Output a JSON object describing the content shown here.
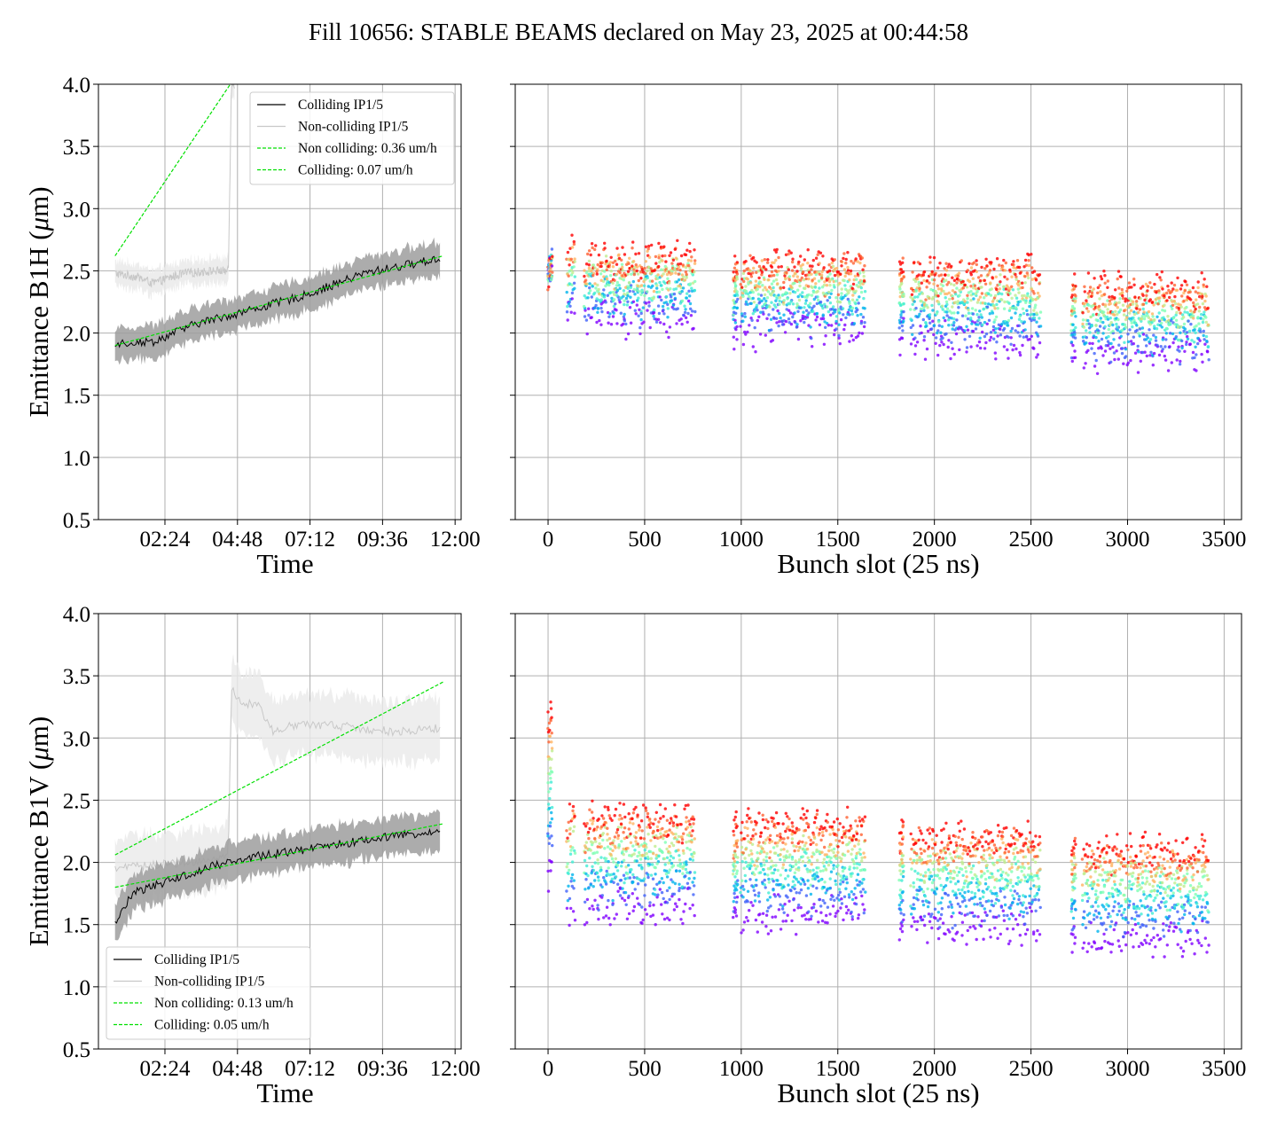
{
  "figure": {
    "title": "Fill 10656: STABLE BEAMS declared on May 23, 2025 at 00:44:58"
  },
  "chart_data": [
    {
      "id": "b1h_time",
      "type": "line",
      "xlabel": "Time",
      "ylabel": "Emittance B1H (μm)",
      "ylabel_parts": [
        "Emittance B1H (",
        "μ",
        "m)"
      ],
      "x_ticks": [
        "02:24",
        "04:48",
        "07:12",
        "09:36",
        "12:00"
      ],
      "x_tick_hours": [
        2.4,
        4.8,
        7.2,
        9.6,
        12.0
      ],
      "xlim_hours": [
        0.2,
        12.2
      ],
      "ylim": [
        0.5,
        4.0
      ],
      "y_ticks": [
        0.5,
        1.0,
        1.5,
        2.0,
        2.5,
        3.0,
        3.5,
        4.0
      ],
      "grid": true,
      "legend_position": "upper right",
      "legend": [
        "Colliding IP1/5",
        "Non-colliding IP1/5",
        "Non colliding: 0.36 um/h",
        "Colliding: 0.07 um/h"
      ],
      "colors": {
        "colliding": "#000000",
        "colliding_band": "#9e9e9e",
        "noncolliding": "#c8c8c8",
        "noncolliding_band": "#e8e8e8",
        "fit": "#00e000"
      },
      "series": [
        {
          "name": "Colliding IP1/5",
          "x_hours": [
            0.75,
            2.0,
            3.5,
            5.0,
            7.0,
            9.0,
            11.5
          ],
          "mean": [
            1.92,
            1.93,
            2.08,
            2.17,
            2.3,
            2.48,
            2.6
          ],
          "band_halfwidth": 0.13
        },
        {
          "name": "Non-colliding IP1/5",
          "x_hours": [
            0.75,
            1.5,
            2.0,
            3.0,
            4.0,
            4.5,
            4.6,
            4.7
          ],
          "mean": [
            2.48,
            2.45,
            2.4,
            2.48,
            2.5,
            2.5,
            4.0,
            4.0
          ],
          "band_halfwidth": 0.1
        },
        {
          "name": "Non colliding: 0.36 um/h",
          "style": "dashed",
          "x_hours": [
            0.75,
            4.7
          ],
          "y": [
            2.62,
            4.05
          ]
        },
        {
          "name": "Colliding: 0.07 um/h",
          "style": "dashed",
          "x_hours": [
            0.75,
            11.6
          ],
          "y": [
            1.9,
            2.62
          ]
        }
      ]
    },
    {
      "id": "b1h_bunch",
      "type": "scatter",
      "xlabel": "Bunch slot (25 ns)",
      "x_ticks": [
        0,
        500,
        1000,
        1500,
        2000,
        2500,
        3000,
        3500
      ],
      "xlim": [
        -170,
        3590
      ],
      "ylim": [
        0.5,
        4.0
      ],
      "grid": true,
      "colormap": "rainbow (purple→red, early→late time)",
      "trains": [
        [
          0,
          20
        ],
        [
          100,
          140
        ],
        [
          190,
          760
        ],
        [
          960,
          980
        ],
        [
          1000,
          1640
        ],
        [
          1820,
          1840
        ],
        [
          1880,
          2550
        ],
        [
          2710,
          2730
        ],
        [
          2770,
          3420
        ]
      ],
      "first_by_train": [
        2.5,
        2.15,
        2.1,
        2.0,
        2.0,
        1.95,
        1.9,
        1.85,
        1.8
      ],
      "last_by_train": [
        2.5,
        2.6,
        2.55,
        2.5,
        2.5,
        2.5,
        2.45,
        2.35,
        2.3
      ],
      "spread": 0.15
    },
    {
      "id": "b1v_time",
      "type": "line",
      "xlabel": "Time",
      "ylabel": "Emittance B1V (μm)",
      "ylabel_parts": [
        "Emittance B1V (",
        "μ",
        "m)"
      ],
      "x_ticks": [
        "02:24",
        "04:48",
        "07:12",
        "09:36",
        "12:00"
      ],
      "x_tick_hours": [
        2.4,
        4.8,
        7.2,
        9.6,
        12.0
      ],
      "xlim_hours": [
        0.2,
        12.2
      ],
      "ylim": [
        0.5,
        4.0
      ],
      "y_ticks": [
        0.5,
        1.0,
        1.5,
        2.0,
        2.5,
        3.0,
        3.5,
        4.0
      ],
      "grid": true,
      "legend_position": "lower left",
      "legend": [
        "Colliding IP1/5",
        "Non-colliding IP1/5",
        "Non colliding: 0.13 um/h",
        "Colliding: 0.05 um/h"
      ],
      "colors": {
        "colliding": "#000000",
        "colliding_band": "#9e9e9e",
        "noncolliding": "#c8c8c8",
        "noncolliding_band": "#eaeaea",
        "fit": "#00e000"
      },
      "series": [
        {
          "name": "Colliding IP1/5",
          "x_hours": [
            0.75,
            1.0,
            1.3,
            2.5,
            4.0,
            5.5,
            7.5,
            9.5,
            11.5
          ],
          "mean": [
            1.5,
            1.6,
            1.75,
            1.85,
            1.97,
            2.05,
            2.12,
            2.2,
            2.25
          ],
          "band_halfwidth": 0.15
        },
        {
          "name": "Non-colliding IP1/5",
          "x_hours": [
            0.75,
            2.0,
            4.0,
            4.5,
            4.6,
            4.8,
            5.5,
            6.0,
            6.5,
            8.0,
            10.0,
            11.5
          ],
          "mean": [
            1.95,
            1.98,
            2.02,
            2.05,
            3.4,
            3.3,
            3.25,
            3.05,
            3.1,
            3.1,
            3.05,
            3.08
          ],
          "band_halfwidth": 0.25
        },
        {
          "name": "Non colliding: 0.13 um/h",
          "style": "dashed",
          "x_hours": [
            0.75,
            11.6
          ],
          "y": [
            2.06,
            3.45
          ]
        },
        {
          "name": "Colliding: 0.05 um/h",
          "style": "dashed",
          "x_hours": [
            0.75,
            11.6
          ],
          "y": [
            1.8,
            2.31
          ]
        }
      ]
    },
    {
      "id": "b1v_bunch",
      "type": "scatter",
      "xlabel": "Bunch slot (25 ns)",
      "x_ticks": [
        0,
        500,
        1000,
        1500,
        2000,
        2500,
        3000,
        3500
      ],
      "xlim": [
        -170,
        3590
      ],
      "ylim": [
        0.5,
        4.0
      ],
      "grid": true,
      "colormap": "rainbow (purple→red, early→late time)",
      "trains": [
        [
          0,
          20
        ],
        [
          100,
          140
        ],
        [
          190,
          760
        ],
        [
          960,
          980
        ],
        [
          1000,
          1640
        ],
        [
          1820,
          1840
        ],
        [
          1880,
          2550
        ],
        [
          2710,
          2730
        ],
        [
          2770,
          3420
        ]
      ],
      "first_by_train": [
        1.9,
        1.55,
        1.6,
        1.55,
        1.55,
        1.45,
        1.45,
        1.4,
        1.35
      ],
      "last_by_train": [
        3.15,
        2.35,
        2.3,
        2.25,
        2.25,
        2.2,
        2.15,
        2.1,
        2.05
      ],
      "spread": 0.15
    }
  ]
}
